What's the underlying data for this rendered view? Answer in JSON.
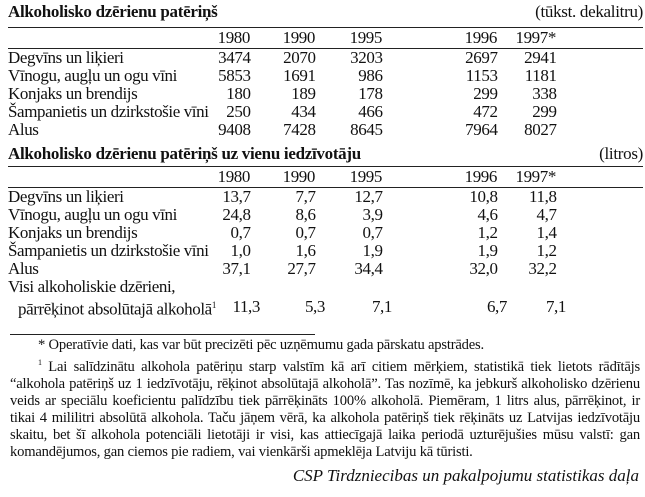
{
  "years": [
    "1980",
    "1990",
    "1995",
    "1996",
    "1997*"
  ],
  "table1": {
    "title": "Alkoholisko dzērienu patēriņš",
    "unit": "(tūkst. dekalitru)",
    "rows": [
      {
        "label": "Degvīns un liķieri",
        "values": [
          "3474",
          "2070",
          "3203",
          "2697",
          "2941"
        ]
      },
      {
        "label": "Vīnogu, augļu un ogu vīni",
        "values": [
          "5853",
          "1691",
          "986",
          "1153",
          "1181"
        ]
      },
      {
        "label": "Konjaks un brendijs",
        "values": [
          "180",
          "189",
          "178",
          "299",
          "338"
        ]
      },
      {
        "label": "Šampanietis un dzirkstošie vīni",
        "values": [
          "250",
          "434",
          "466",
          "472",
          "299"
        ]
      },
      {
        "label": "Alus",
        "values": [
          "9408",
          "7428",
          "8645",
          "7964",
          "8027"
        ]
      }
    ]
  },
  "table2": {
    "title": "Alkoholisko dzērienu patēriņš uz vienu iedzīvotāju",
    "unit": "(litros)",
    "rows": [
      {
        "label": "Degvīns un liķieri",
        "values": [
          "13,7",
          "7,7",
          "12,7",
          "10,8",
          "11,8"
        ]
      },
      {
        "label": "Vīnogu, augļu un ogu vīni",
        "values": [
          "24,8",
          "8,6",
          "3,9",
          "4,6",
          "4,7"
        ]
      },
      {
        "label": "Konjaks un brendijs",
        "values": [
          "0,7",
          "0,7",
          "0,7",
          "1,2",
          "1,4"
        ]
      },
      {
        "label": "Šampanietis un dzirkstošie vīni",
        "values": [
          "1,0",
          "1,6",
          "1,9",
          "1,9",
          "1,2"
        ]
      },
      {
        "label": "Alus",
        "values": [
          "37,1",
          "27,7",
          "34,4",
          "32,0",
          "32,2"
        ]
      }
    ],
    "total": {
      "label_line1": "Visi alkoholiskie dzērieni,",
      "label_line2": "pārrēķinot absolūtajā alkoholā",
      "footnote_mark": "1",
      "values": [
        "11,3",
        "5,3",
        "7,1",
        "6,7",
        "7,1"
      ]
    }
  },
  "footnotes": {
    "star": "* Operatīvie dati, kas var būt precizēti pēc uzņēmumu gada pārskatu apstrādes.",
    "one_mark": "1",
    "one": " Lai salīdzinātu alkohola patēriņu starp valstīm kā arī citiem mērķiem, statistikā tiek lietots rādītājs “alkohola patēriņš uz 1 iedzīvotāju, rēķinot absolūtajā alkoholā”. Tas nozīmē, ka jebkurš alkoholisko dzērienu veids ar speciālu koeficientu palīdzību tiek pārrēķināts 100% alkoholā. Piemēram, 1 litrs alus, pārrēķinot, ir tikai 4 mililitri absolūtā alkohola. Taču jāņem vērā, ka alkohola patēriņš tiek rēķināts uz Latvijas iedzīvotāju skaitu, bet šī alkohola potenciāli lietotāji ir visi, kas attiecīgajā laika periodā uzturējušies mūsu valstī: gan komandējumos, gan ciemos pie radiem, vai vienkārši apmeklēja Latviju kā tūristi."
  },
  "signature": "CSP Tirdzniecibas un pakalpojumu statistikas daļa"
}
